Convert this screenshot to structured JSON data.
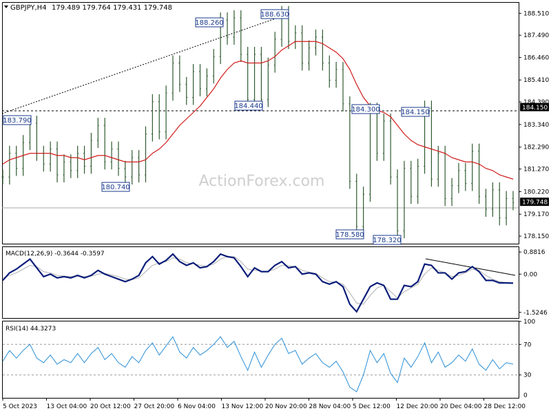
{
  "header": {
    "symbol_label": "GBPJPY,H4",
    "ohlc": "179.489 179.764 179.431 179.748"
  },
  "watermark": "ActionForex.com",
  "x_labels": [
    "5 Oct 2023",
    "13 Oct 04:00",
    "20 Oct 12:00",
    "27 Oct 20:00",
    "6 Nov 04:00",
    "13 Nov 12:00",
    "20 Nov 20:00",
    "28 Nov 04:00",
    "5 Dec 12:00",
    "12 Dec 20:00",
    "20 Dec 04:00",
    "28 Dec 12:00"
  ],
  "chart_data": [
    {
      "type": "line",
      "panel": "price",
      "ylim": [
        177.8,
        189.0
      ],
      "y_ticks": [
        "188.510",
        "187.490",
        "186.460",
        "185.410",
        "184.390",
        "183.340",
        "182.290",
        "181.270",
        "180.220",
        "179.170",
        "178.150"
      ],
      "current_price": "179.748",
      "level_184_label": "184.150",
      "swing_labels": [
        "183.790",
        "188.260",
        "188.630",
        "180.740",
        "184.440",
        "184.300",
        "178.580",
        "178.320",
        "184.150"
      ],
      "series": [
        {
          "values": [
            180.9,
            182.0,
            181.3,
            182.5,
            183.4,
            182.0,
            181.5,
            182.2,
            181.0,
            181.6,
            181.2,
            182.0,
            181.4,
            182.6,
            183.3,
            181.6,
            182.2,
            181.3,
            180.9,
            181.8,
            181.0,
            182.9,
            184.4,
            183.0,
            184.8,
            186.2,
            185.2,
            184.6,
            185.8,
            185.0,
            185.6,
            186.5,
            188.2,
            187.4,
            188.3,
            186.6,
            184.5,
            186.6,
            184.5,
            186.1,
            187.3,
            188.5,
            187.2,
            187.6,
            186.2,
            186.9,
            187.4,
            186.2,
            185.4,
            185.9,
            184.3,
            180.7,
            178.6,
            180.1,
            184.0,
            182.0,
            183.5,
            180.9,
            178.4,
            181.3,
            180.0,
            181.4,
            184.1,
            180.8,
            182.0,
            179.9,
            180.5,
            181.2,
            180.6,
            182.1,
            180.0,
            179.4,
            180.3,
            179.0,
            179.9,
            179.7
          ]
        },
        {
          "name": "",
          "values": [
            181.5,
            181.7,
            181.8,
            181.9,
            182.0,
            182.0,
            182.0,
            182.0,
            181.9,
            181.9,
            181.8,
            181.8,
            181.7,
            181.8,
            181.9,
            181.9,
            181.8,
            181.7,
            181.6,
            181.6,
            181.6,
            181.7,
            182.0,
            182.2,
            182.5,
            182.9,
            183.3,
            183.6,
            183.9,
            184.2,
            184.6,
            185.0,
            185.5,
            185.9,
            186.2,
            186.3,
            186.2,
            186.2,
            186.2,
            186.3,
            186.5,
            186.8,
            187.0,
            187.2,
            187.2,
            187.2,
            187.2,
            187.1,
            186.9,
            186.7,
            186.4,
            185.9,
            185.2,
            184.6,
            184.2,
            184.0,
            183.9,
            183.7,
            183.3,
            182.9,
            182.6,
            182.4,
            182.3,
            182.2,
            182.1,
            182.0,
            181.8,
            181.7,
            181.6,
            181.6,
            181.5,
            181.3,
            181.2,
            181.0,
            180.9,
            180.8
          ]
        }
      ]
    },
    {
      "type": "line",
      "panel": "macd",
      "title": "MACD(12,26,9) -0.3644 -0.3597",
      "ylim": [
        -1.75,
        1.05
      ],
      "y_ticks": [
        "0.8816",
        "0.00",
        "-1.5246"
      ],
      "series": [
        {
          "values": [
            -0.25,
            0.05,
            0.2,
            0.4,
            0.6,
            0.25,
            -0.1,
            0.0,
            -0.15,
            -0.1,
            -0.15,
            -0.05,
            -0.15,
            -0.05,
            0.15,
            0.0,
            -0.1,
            -0.2,
            -0.3,
            -0.2,
            -0.05,
            0.45,
            0.7,
            0.4,
            0.55,
            0.8,
            0.5,
            0.35,
            0.45,
            0.25,
            0.3,
            0.5,
            0.8,
            0.7,
            0.65,
            0.3,
            -0.1,
            0.25,
            0.1,
            0.1,
            0.35,
            0.5,
            0.25,
            0.3,
            0.0,
            0.05,
            0.0,
            -0.3,
            -0.4,
            -0.3,
            -0.5,
            -1.2,
            -1.5,
            -1.0,
            -0.5,
            -0.35,
            -0.45,
            -1.0,
            -1.0,
            -0.45,
            -0.5,
            -0.3,
            0.4,
            0.35,
            0.05,
            0.05,
            -0.2,
            0.05,
            0.1,
            0.3,
            0.1,
            -0.25,
            -0.25,
            -0.35,
            -0.35,
            -0.36
          ]
        },
        {
          "values": [
            -0.15,
            -0.05,
            0.05,
            0.2,
            0.35,
            0.3,
            0.1,
            0.05,
            -0.05,
            -0.08,
            -0.1,
            -0.08,
            -0.1,
            -0.08,
            0.0,
            0.03,
            -0.03,
            -0.1,
            -0.2,
            -0.22,
            -0.15,
            0.1,
            0.35,
            0.45,
            0.5,
            0.65,
            0.6,
            0.45,
            0.43,
            0.35,
            0.32,
            0.4,
            0.6,
            0.7,
            0.7,
            0.5,
            0.2,
            0.15,
            0.12,
            0.1,
            0.2,
            0.35,
            0.33,
            0.3,
            0.15,
            0.08,
            0.03,
            -0.15,
            -0.3,
            -0.32,
            -0.4,
            -0.75,
            -1.15,
            -1.2,
            -0.85,
            -0.55,
            -0.45,
            -0.7,
            -0.95,
            -0.7,
            -0.55,
            -0.4,
            0.0,
            0.25,
            0.15,
            0.05,
            -0.1,
            -0.05,
            0.05,
            0.2,
            0.15,
            -0.05,
            -0.2,
            -0.3,
            -0.34,
            -0.36
          ]
        }
      ]
    },
    {
      "type": "line",
      "panel": "rsi",
      "title": "RSI(14) 44.3273",
      "ylim": [
        0,
        100
      ],
      "y_ticks": [
        "100",
        "70",
        "30",
        "0"
      ],
      "series": [
        {
          "values": [
            48,
            62,
            52,
            62,
            70,
            52,
            46,
            56,
            44,
            50,
            46,
            58,
            46,
            58,
            66,
            50,
            58,
            46,
            40,
            54,
            46,
            62,
            72,
            56,
            68,
            80,
            60,
            52,
            66,
            56,
            62,
            70,
            80,
            66,
            74,
            54,
            36,
            60,
            40,
            56,
            70,
            78,
            58,
            62,
            44,
            52,
            58,
            46,
            40,
            48,
            34,
            14,
            8,
            30,
            62,
            46,
            58,
            32,
            20,
            52,
            40,
            54,
            72,
            46,
            60,
            40,
            46,
            56,
            48,
            64,
            44,
            36,
            50,
            38,
            46,
            44
          ]
        }
      ]
    }
  ]
}
